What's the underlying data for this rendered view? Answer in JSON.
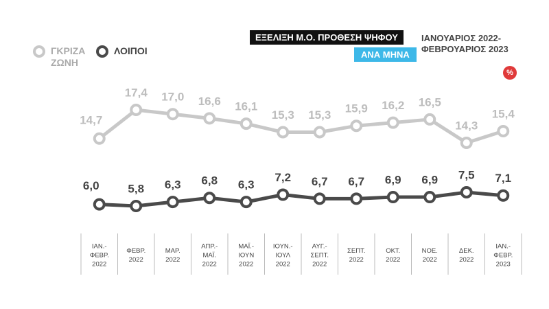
{
  "chart_data": {
    "type": "line",
    "title": "ΕΞΕΛΙΞΗ Μ.Ο. ΠΡΟΘΕΣΗ ΨΗΦΟΥ",
    "subtitle": "ΑΝΑ ΜΗΝΑ",
    "annotations": [
      "ΙΑΝΟΥΑΡΙΟΣ 2022-",
      "ΦΕΒΡΟΥΑΡΙΟΣ 2023"
    ],
    "unit": "%",
    "categories": [
      [
        "ΙΑΝ.-",
        "ΦΕΒΡ.",
        "2022"
      ],
      [
        "ΦΕΒΡ.",
        "2022"
      ],
      [
        "ΜΑΡ.",
        "2022"
      ],
      [
        "ΑΠΡ.-",
        "ΜΑΪ.",
        "2022"
      ],
      [
        "ΜΑΪ.-",
        "ΙΟΥΝ",
        "2022"
      ],
      [
        "ΙΟΥΝ.-",
        "ΙΟΥΛ",
        "2022"
      ],
      [
        "ΑΥΓ.-",
        "ΣΕΠΤ.",
        "2022"
      ],
      [
        "ΣΕΠΤ.",
        "2022"
      ],
      [
        "ΟΚΤ.",
        "2022"
      ],
      [
        "ΝΟΕ.",
        "2022"
      ],
      [
        "ΔΕΚ.",
        "2022"
      ],
      [
        "ΙΑΝ.-",
        "ΦΕΒΡ.",
        "2023"
      ]
    ],
    "series": [
      {
        "name": "ΓΚΡΙΖΑ ΖΩΝΗ",
        "color": "#c8c8c8",
        "values": [
          14.7,
          17.4,
          17.0,
          16.6,
          16.1,
          15.3,
          15.3,
          15.9,
          16.2,
          16.5,
          14.3,
          15.4
        ],
        "value_labels": [
          "14,7",
          "17,4",
          "17,0",
          "16,6",
          "16,1",
          "15,3",
          "15,3",
          "15,9",
          "16,2",
          "16,5",
          "14,3",
          "15,4"
        ]
      },
      {
        "name": "ΛΟΙΠΟΙ",
        "color": "#4a4a4a",
        "values": [
          6.0,
          5.8,
          6.3,
          6.8,
          6.3,
          7.2,
          6.7,
          6.7,
          6.9,
          6.9,
          7.5,
          7.1
        ],
        "value_labels": [
          "6,0",
          "5,8",
          "6,3",
          "6,8",
          "6,3",
          "7,2",
          "6,7",
          "6,7",
          "6,9",
          "6,9",
          "7,5",
          "7,1"
        ]
      }
    ]
  }
}
